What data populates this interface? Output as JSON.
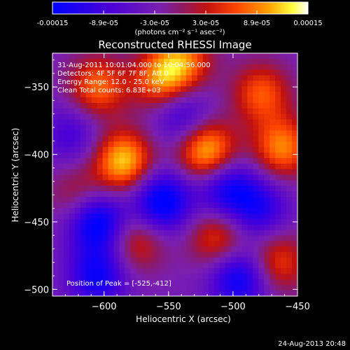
{
  "colorbar": {
    "tick_labels": [
      "-0.00015",
      "-8.9e-05",
      "-3.0e-05",
      "3.0e-05",
      "8.9e-05",
      "0.00015"
    ],
    "units_label": "(photons cm⁻² s⁻¹ asec⁻²)",
    "range": [
      -0.00015,
      0.00015
    ]
  },
  "chart_data": {
    "type": "heatmap",
    "title": "Reconstructed RHESSI Image",
    "xlabel": "Heliocentric X (arcsec)",
    "ylabel": "Heliocentric Y (arcsec)",
    "xlim": [
      -640,
      -450
    ],
    "ylim": [
      -505,
      -325
    ],
    "x_ticks": [
      -600,
      -550,
      -500,
      -450
    ],
    "y_ticks": [
      -350,
      -400,
      -450,
      -500
    ],
    "x_tick_labels": [
      "−600",
      "−550",
      "−500",
      "−450"
    ],
    "y_tick_labels": [
      "−350",
      "−400",
      "−450",
      "−500"
    ],
    "annotations": [
      "31-Aug-2011 10:01:04.000 to 10:04:56.000",
      "Detectors: 4F 5F 6F 7F 8F, Att 0",
      "Energy Range: 12.0 - 25.0 keV",
      "Clean    Total counts: 6.83E+03"
    ],
    "peak_label": "Position of Peak = [-525,-412]",
    "peak": [
      -525,
      -412
    ],
    "sources": [
      {
        "x": -585,
        "y": -405,
        "v": 0.00015
      },
      {
        "x": -520,
        "y": -398,
        "v": 0.00015
      },
      {
        "x": -605,
        "y": -350,
        "v": 0.00011
      },
      {
        "x": -555,
        "y": -345,
        "v": 0.00012
      },
      {
        "x": -478,
        "y": -355,
        "v": 0.0001
      },
      {
        "x": -462,
        "y": -395,
        "v": 0.00012
      },
      {
        "x": -538,
        "y": -330,
        "v": 0.0001
      },
      {
        "x": -575,
        "y": -465,
        "v": 8e-05
      },
      {
        "x": -512,
        "y": -462,
        "v": 9e-05
      },
      {
        "x": -465,
        "y": -480,
        "v": 9e-05
      },
      {
        "x": -620,
        "y": -430,
        "v": 6e-05
      },
      {
        "x": -605,
        "y": -450,
        "v": -0.00014
      },
      {
        "x": -555,
        "y": -435,
        "v": -0.00014
      },
      {
        "x": -505,
        "y": -425,
        "v": -0.00011
      },
      {
        "x": -495,
        "y": -492,
        "v": -0.00012
      },
      {
        "x": -605,
        "y": -490,
        "v": -0.00011
      },
      {
        "x": -540,
        "y": -370,
        "v": -8e-05
      },
      {
        "x": -480,
        "y": -440,
        "v": -9e-05
      },
      {
        "x": -625,
        "y": -385,
        "v": -6e-05
      }
    ]
  },
  "footer": {
    "timestamp": "24-Aug-2013 20:48"
  }
}
